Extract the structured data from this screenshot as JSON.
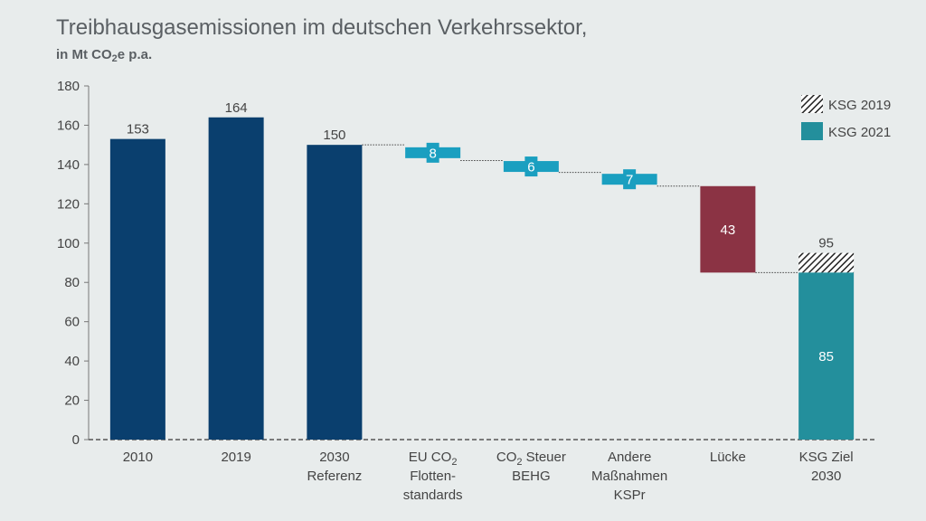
{
  "title": "Treibhausgasemissionen im deutschen Verkehrssektor,",
  "subtitle": {
    "prefix": "in Mt CO",
    "subscript": "2",
    "suffix": "e p.a."
  },
  "colors": {
    "bar": "#0a3f6e",
    "reduction": "#1a9fc0",
    "gap": "#8b3344",
    "target": "#238f9c",
    "axis_text": "#444444",
    "label": "#444444"
  },
  "chart_data": {
    "type": "waterfall",
    "ylim": [
      0,
      180
    ],
    "yticks": [
      0,
      20,
      40,
      60,
      80,
      100,
      120,
      140,
      160,
      180
    ],
    "categories": [
      [
        "2010"
      ],
      [
        "2019"
      ],
      [
        "2030",
        "Referenz"
      ],
      [
        "EU CO₂",
        "Flotten-",
        "standards"
      ],
      [
        "CO₂ Steuer",
        "BEHG"
      ],
      [
        "Andere",
        "Maßnahmen",
        "KSPr"
      ],
      [
        "Lücke"
      ],
      [
        "KSG Ziel",
        "2030"
      ]
    ],
    "bars": [
      {
        "kind": "total",
        "value": 153,
        "label": "153"
      },
      {
        "kind": "total",
        "value": 164,
        "label": "164"
      },
      {
        "kind": "total",
        "value": 150,
        "label": "150"
      },
      {
        "kind": "reduction",
        "from": 150,
        "to": 142,
        "value": 8,
        "label": "8"
      },
      {
        "kind": "reduction",
        "from": 142,
        "to": 136,
        "value": 6,
        "label": "6"
      },
      {
        "kind": "reduction",
        "from": 136,
        "to": 129,
        "value": 7,
        "label": "7"
      },
      {
        "kind": "gap",
        "from": 129,
        "to": 85,
        "value": 43,
        "label": "43"
      },
      {
        "kind": "target",
        "value": 85,
        "label": "85",
        "hatch_to": 95,
        "hatch_label": "95"
      }
    ],
    "legend": [
      {
        "name": "KSG 2019",
        "style": "hatch"
      },
      {
        "name": "KSG 2021",
        "style": "target"
      }
    ],
    "legend_position": "top-right",
    "grid": false
  }
}
